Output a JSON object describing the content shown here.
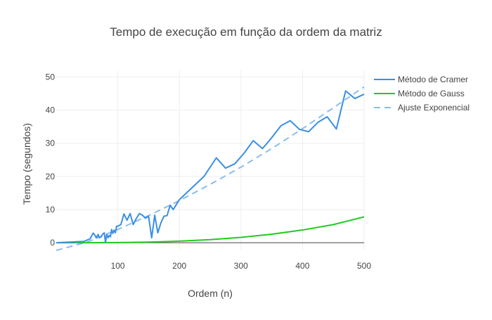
{
  "chart_data": {
    "type": "line",
    "title": "Tempo de execução em função da ordem da matriz",
    "xlabel": "Ordem (n)",
    "ylabel": "Tempo (segundos)",
    "xlim": [
      0,
      500
    ],
    "ylim": [
      -2.3,
      52
    ],
    "xticks": [
      100,
      200,
      300,
      400,
      500
    ],
    "yticks": [
      0,
      10,
      20,
      30,
      40,
      50
    ],
    "grid": true,
    "legend_position": "top-right",
    "series": [
      {
        "name": "Método de Cramer",
        "color": "#3a8fe3",
        "dash": "solid",
        "x": [
          0,
          45,
          50,
          55,
          60,
          62,
          65,
          68,
          70,
          73,
          75,
          78,
          80,
          82,
          84,
          86,
          88,
          90,
          92,
          94,
          96,
          98,
          100,
          105,
          110,
          115,
          120,
          125,
          130,
          135,
          140,
          145,
          150,
          155,
          160,
          165,
          170,
          175,
          180,
          185,
          190,
          195,
          200,
          220,
          240,
          260,
          275,
          290,
          305,
          320,
          335,
          350,
          365,
          380,
          395,
          410,
          425,
          440,
          455,
          470,
          485,
          500
        ],
        "y": [
          0,
          0.4,
          0.8,
          1.2,
          2.9,
          2.5,
          1.5,
          2.5,
          1.5,
          1.8,
          2.5,
          3.0,
          0.1,
          2.6,
          1.5,
          2.2,
          1.8,
          4.0,
          2.8,
          3.8,
          3.0,
          5.0,
          5.0,
          5.5,
          8.7,
          6.8,
          8.8,
          5.5,
          7.3,
          8.8,
          8.3,
          7.4,
          8.0,
          1.5,
          8.3,
          3.0,
          6.0,
          8.0,
          8.2,
          11.3,
          10.0,
          11.5,
          13.0,
          16.5,
          20.0,
          25.6,
          22.5,
          23.8,
          27.0,
          30.8,
          28.4,
          31.7,
          35.3,
          36.8,
          34.2,
          33.5,
          36.3,
          38.0,
          34.3,
          45.8,
          43.5,
          44.8
        ]
      },
      {
        "name": "Método de Gauss",
        "color": "#1fcb1f",
        "dash": "solid",
        "x": [
          0,
          50,
          100,
          150,
          200,
          250,
          300,
          350,
          400,
          450,
          500
        ],
        "y": [
          0,
          0.01,
          0.06,
          0.2,
          0.48,
          0.94,
          1.62,
          2.57,
          3.84,
          5.47,
          7.8
        ]
      },
      {
        "name": "Ajuste Exponencial",
        "color": "#89bdee",
        "dash": "dashed",
        "x": [
          0,
          50,
          100,
          150,
          200,
          250,
          300,
          350,
          400,
          450,
          500
        ],
        "y": [
          -2.3,
          0.2,
          4.0,
          8.2,
          12.7,
          17.6,
          22.8,
          28.4,
          34.4,
          40.7,
          47.0
        ]
      }
    ]
  }
}
